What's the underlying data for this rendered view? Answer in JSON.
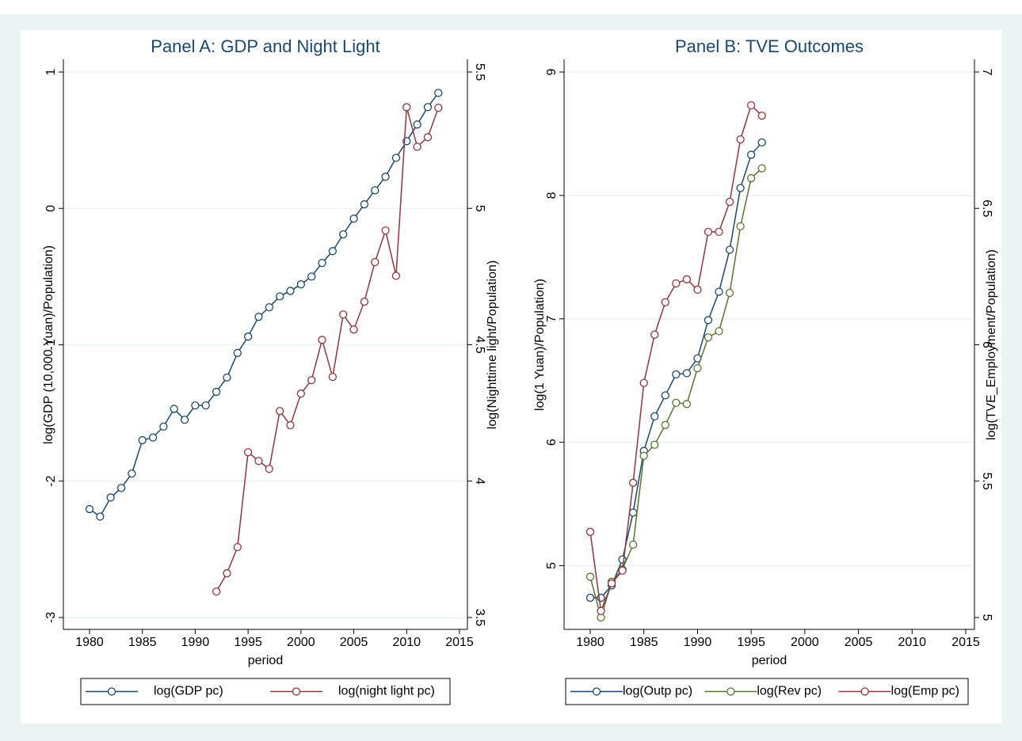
{
  "chart_data": [
    {
      "type": "line",
      "title": "Panel A: GDP and Night Light",
      "xlabel": "period",
      "ylabel": "log(GDP (10,000 Yuan)/Population)",
      "y2label": "log(Nighttime light/Population)",
      "x": [
        1980,
        1981,
        1982,
        1983,
        1984,
        1985,
        1986,
        1987,
        1988,
        1989,
        1990,
        1991,
        1992,
        1993,
        1994,
        1995,
        1996,
        1997,
        1998,
        1999,
        2000,
        2001,
        2002,
        2003,
        2004,
        2005,
        2006,
        2007,
        2008,
        2009,
        2010,
        2011,
        2012,
        2013
      ],
      "xlim": [
        1980,
        2015
      ],
      "xticks": [
        1980,
        1985,
        1990,
        1995,
        2000,
        2005,
        2010,
        2015
      ],
      "ylim": [
        -3,
        1
      ],
      "yticks": [
        -3,
        -2,
        -1,
        0,
        1
      ],
      "y2lim": [
        3.5,
        5.5
      ],
      "y2ticks": [
        3.5,
        4,
        4.5,
        5,
        5.5
      ],
      "grid": true,
      "series": [
        {
          "name": "log(GDP pc)",
          "color": "#1a476f",
          "values": [
            -2.205,
            -2.26,
            -2.12,
            -2.05,
            -1.945,
            -1.7,
            -1.68,
            -1.6,
            -1.47,
            -1.55,
            -1.445,
            -1.445,
            -1.345,
            -1.24,
            -1.06,
            -0.94,
            -0.795,
            -0.725,
            -0.645,
            -0.605,
            -0.557,
            -0.5,
            -0.4,
            -0.313,
            -0.19,
            -0.075,
            0.03,
            0.133,
            0.232,
            0.371,
            0.493,
            0.615,
            0.743,
            0.847
          ]
        },
        {
          "name": "log(night light pc)",
          "color": "#90353b",
          "axis": "y2",
          "values": [
            null,
            null,
            null,
            null,
            null,
            null,
            null,
            null,
            null,
            null,
            null,
            null,
            3.595,
            3.662,
            3.758,
            4.106,
            4.074,
            4.045,
            4.257,
            4.205,
            4.321,
            4.37,
            4.518,
            4.382,
            4.611,
            4.556,
            4.658,
            4.803,
            4.919,
            4.753,
            5.371,
            5.226,
            5.261,
            5.369
          ]
        }
      ]
    },
    {
      "type": "line",
      "title": "Panel B: TVE Outcomes",
      "xlabel": "period",
      "ylabel": "log(1 Yuan)/Population)",
      "y2label": "log(TVE_Employment/Population)",
      "x": [
        1980,
        1981,
        1982,
        1983,
        1984,
        1985,
        1986,
        1987,
        1988,
        1989,
        1990,
        1991,
        1992,
        1993,
        1994,
        1995,
        1996
      ],
      "xlim": [
        1980,
        2015
      ],
      "xticks": [
        1980,
        1985,
        1990,
        1995,
        2000,
        2005,
        2010,
        2015
      ],
      "ylim": [
        4.58,
        9
      ],
      "yticks": [
        5,
        6,
        7,
        8,
        9
      ],
      "y2lim": [
        5,
        7
      ],
      "y2ticks": [
        5,
        5.5,
        6,
        6.5,
        7
      ],
      "grid": true,
      "series": [
        {
          "name": "log(Outp pc)",
          "color": "#1a476f",
          "values": [
            4.74,
            4.74,
            4.84,
            5.05,
            5.43,
            5.93,
            6.21,
            6.38,
            6.55,
            6.56,
            6.68,
            6.99,
            7.22,
            7.56,
            8.06,
            8.33,
            8.43
          ]
        },
        {
          "name": "log(Rev pc)",
          "color": "#55752f",
          "values": [
            4.91,
            4.58,
            4.87,
            4.97,
            5.17,
            5.89,
            5.98,
            6.14,
            6.32,
            6.31,
            6.6,
            6.85,
            6.9,
            7.21,
            7.75,
            8.14,
            8.22
          ]
        },
        {
          "name": "log(Emp pc)",
          "color": "#90353b",
          "axis": "y2",
          "values": [
            5.314,
            5.024,
            5.125,
            5.172,
            5.494,
            5.86,
            6.037,
            6.156,
            6.225,
            6.24,
            6.202,
            6.414,
            6.414,
            6.524,
            6.753,
            6.878,
            6.84
          ]
        }
      ]
    }
  ]
}
